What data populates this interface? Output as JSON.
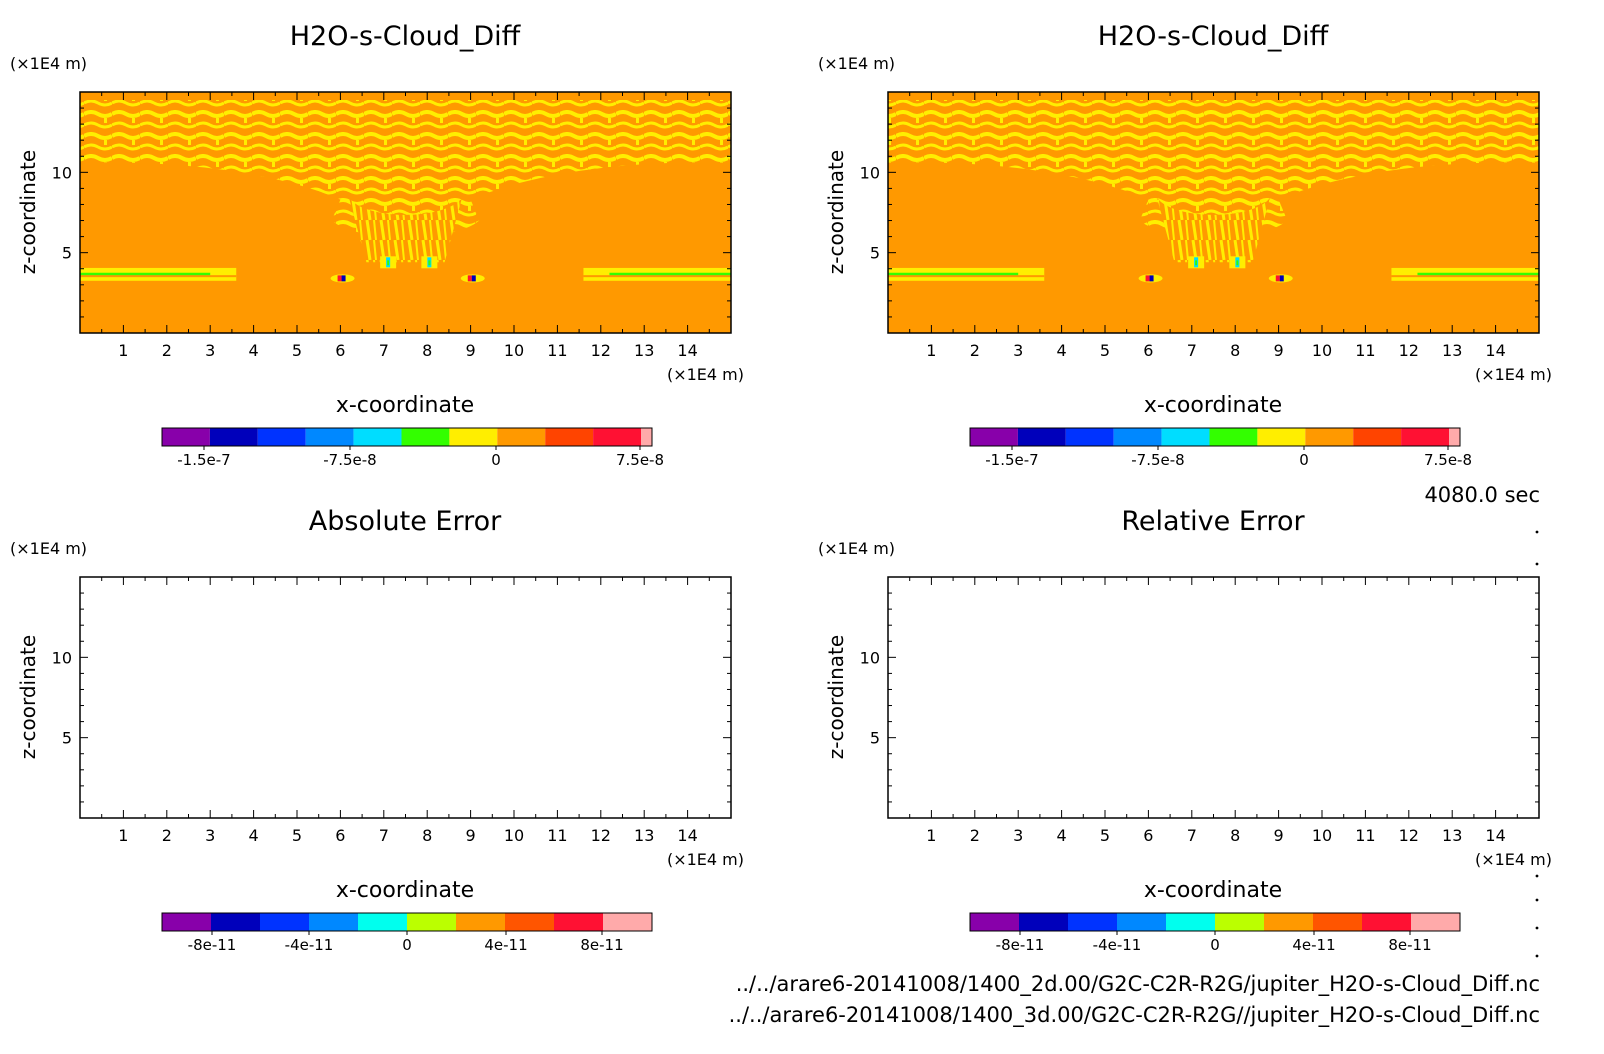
{
  "time_label": "4080.0 sec",
  "files": [
    "../../arare6-20141008/1400_2d.00/G2C-C2R-R2G/jupiter_H2O-s-Cloud_Diff.nc",
    "../../arare6-20141008/1400_3d.00/G2C-C2R-R2G//jupiter_H2O-s-Cloud_Diff.nc"
  ],
  "colors": {
    "background_field": "#FF9900",
    "pattern": "#FFEE00",
    "axis": "#000000"
  },
  "chart_data": [
    {
      "type": "heatmap",
      "title": "H2O-s-Cloud_Diff",
      "xlabel": "x-coordinate",
      "ylabel": "z-coordinate",
      "x_unit": "(×1E4 m)",
      "y_unit": "(×1E4 m)",
      "xlim": [
        0,
        15
      ],
      "ylim": [
        0,
        15
      ],
      "x_ticks": [
        "1",
        "2",
        "3",
        "4",
        "5",
        "6",
        "7",
        "8",
        "9",
        "10",
        "11",
        "12",
        "13",
        "14"
      ],
      "y_ticks": [
        "5",
        "10"
      ],
      "field": "filled",
      "colorbar": {
        "colors": [
          "#8800AA",
          "#0000BB",
          "#0033FF",
          "#0088FF",
          "#00DDFF",
          "#33FF00",
          "#FFEE00",
          "#FF9900",
          "#FF4400",
          "#FF1133",
          "#FFAAAA"
        ],
        "tick_labels": [
          "-1.5e-7",
          "-7.5e-8",
          "0",
          "7.5e-8"
        ]
      }
    },
    {
      "type": "heatmap",
      "title": "H2O-s-Cloud_Diff",
      "xlabel": "x-coordinate",
      "ylabel": "z-coordinate",
      "x_unit": "(×1E4 m)",
      "y_unit": "(×1E4 m)",
      "xlim": [
        0,
        15
      ],
      "ylim": [
        0,
        15
      ],
      "x_ticks": [
        "1",
        "2",
        "3",
        "4",
        "5",
        "6",
        "7",
        "8",
        "9",
        "10",
        "11",
        "12",
        "13",
        "14"
      ],
      "y_ticks": [
        "5",
        "10"
      ],
      "field": "filled",
      "colorbar": {
        "colors": [
          "#8800AA",
          "#0000BB",
          "#0033FF",
          "#0088FF",
          "#00DDFF",
          "#33FF00",
          "#FFEE00",
          "#FF9900",
          "#FF4400",
          "#FF1133",
          "#FFAAAA"
        ],
        "tick_labels": [
          "-1.5e-7",
          "-7.5e-8",
          "0",
          "7.5e-8"
        ]
      }
    },
    {
      "type": "heatmap",
      "title": "Absolute Error",
      "xlabel": "x-coordinate",
      "ylabel": "z-coordinate",
      "x_unit": "(×1E4 m)",
      "y_unit": "(×1E4 m)",
      "xlim": [
        0,
        15
      ],
      "ylim": [
        0,
        15
      ],
      "x_ticks": [
        "1",
        "2",
        "3",
        "4",
        "5",
        "6",
        "7",
        "8",
        "9",
        "10",
        "11",
        "12",
        "13",
        "14"
      ],
      "y_ticks": [
        "5",
        "10"
      ],
      "field": "empty",
      "colorbar": {
        "colors": [
          "#8800AA",
          "#0000BB",
          "#0033FF",
          "#0088FF",
          "#00FFEE",
          "#BBFF00",
          "#FF9900",
          "#FF5500",
          "#FF1133",
          "#FFAAAA"
        ],
        "tick_labels": [
          "-8e-11",
          "-4e-11",
          "0",
          "4e-11",
          "8e-11"
        ]
      }
    },
    {
      "type": "heatmap",
      "title": "Relative Error",
      "xlabel": "x-coordinate",
      "ylabel": "z-coordinate",
      "x_unit": "(×1E4 m)",
      "y_unit": "(×1E4 m)",
      "xlim": [
        0,
        15
      ],
      "ylim": [
        0,
        15
      ],
      "x_ticks": [
        "1",
        "2",
        "3",
        "4",
        "5",
        "6",
        "7",
        "8",
        "9",
        "10",
        "11",
        "12",
        "13",
        "14"
      ],
      "y_ticks": [
        "5",
        "10"
      ],
      "field": "empty",
      "colorbar": {
        "colors": [
          "#8800AA",
          "#0000BB",
          "#0033FF",
          "#0088FF",
          "#00FFEE",
          "#BBFF00",
          "#FF9900",
          "#FF5500",
          "#FF1133",
          "#FFAAAA"
        ],
        "tick_labels": [
          "-8e-11",
          "-4e-11",
          "0",
          "4e-11",
          "8e-11"
        ]
      }
    }
  ]
}
